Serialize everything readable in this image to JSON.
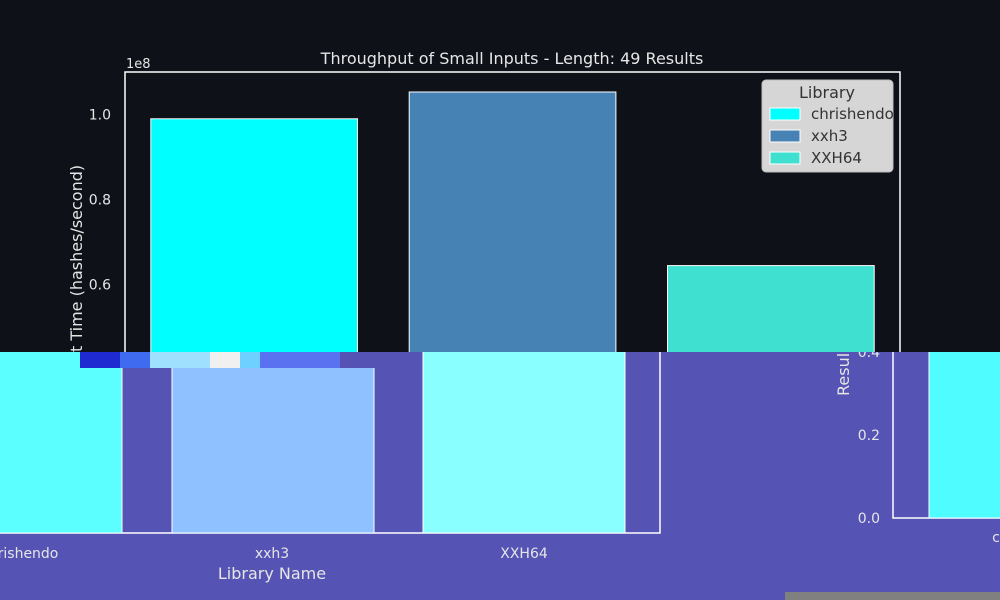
{
  "chart_data": {
    "type": "bar",
    "title": "Throughput of Small Inputs - Length: 49 Results",
    "xlabel": "Library Name",
    "ylabel": "Throughput Time (hashes/second)",
    "ylabel_visible_fragment": "t Time (hashes/second)",
    "offset_label": "1e8",
    "scale": 100000000,
    "categories": [
      "chrishendo",
      "xxh3",
      "XXH64"
    ],
    "values": [
      99000000,
      105300000,
      64500000
    ],
    "ylim": [
      0,
      110000000
    ],
    "yticks": [
      {
        "value": 1.0,
        "label": "1.0"
      },
      {
        "value": 0.8,
        "label": "0.8"
      },
      {
        "value": 0.6,
        "label": "0.6"
      }
    ],
    "grid": false,
    "legend": {
      "title": "Library",
      "placement": "top-right",
      "entries": [
        "chrishendo",
        "xxh3",
        "XXH64"
      ]
    },
    "colors": [
      "#00ffff",
      "#4682b4",
      "#40e0d0"
    ]
  },
  "overlay": {
    "x_tick_labels": [
      "rishendo",
      "xxh3",
      "XXH64"
    ],
    "xlabel": "Library Name",
    "colors": [
      "#5bffff",
      "#8fc0ff",
      "#8affff"
    ],
    "right_panel": {
      "ylabel_fragment": "Resul",
      "yticks": [
        "0.4",
        "0.2",
        "0.0"
      ],
      "category_fragment": "c"
    }
  }
}
